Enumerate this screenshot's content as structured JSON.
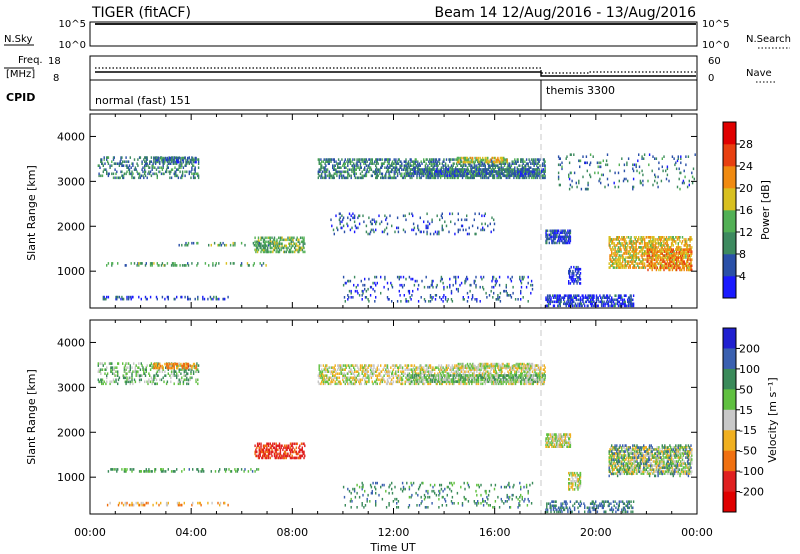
{
  "header": {
    "station": "TIGER (fitACF)",
    "beam_info": "Beam 14 12/Aug/2016 - 13/Aug/2016"
  },
  "top_panels": {
    "nsky_label": "N.Sky",
    "nsky_ticks": [
      "10^5",
      "10^0"
    ],
    "nsearch_label": "N.Search",
    "nsearch_ticks": [
      "10^5",
      "10^0"
    ],
    "freq_label_1": "Freq.",
    "freq_label_2": "[MHz]",
    "freq_ticks": [
      "18",
      "8"
    ],
    "nave_label": "Nave",
    "nave_ticks": [
      "60",
      "0"
    ],
    "cpid_label": "CPID",
    "modes": [
      {
        "name": "normal (fast) 151",
        "start_hour": 0,
        "end_hour": 18
      },
      {
        "name": "themis 3300",
        "start_hour": 18,
        "end_hour": 24
      }
    ]
  },
  "colorbars": {
    "power": {
      "title": "Power [dB]",
      "ticks": [
        "28",
        "24",
        "20",
        "16",
        "12",
        "8",
        "4"
      ],
      "colors": [
        "#1a1aff",
        "#2a50a8",
        "#3d8a5f",
        "#52b055",
        "#d8c020",
        "#f08a10",
        "#e84010",
        "#e00000"
      ]
    },
    "velocity": {
      "title": "Velocity [m s⁻¹]",
      "ticks": [
        "200",
        "100",
        "50",
        "15",
        "-15",
        "-50",
        "-100",
        "-200"
      ],
      "colors": [
        "#2020d0",
        "#3a60b0",
        "#3a8a5a",
        "#60c040",
        "#c8c8c8",
        "#f0b020",
        "#f07010",
        "#e02020",
        "#e00000"
      ]
    }
  },
  "axes": {
    "ylabel": "Slant Range [km]",
    "xlabel": "Time UT",
    "x_ticks": [
      "00:00",
      "04:00",
      "08:00",
      "12:00",
      "16:00",
      "20:00",
      "00:00"
    ],
    "y_ticks": [
      "4000",
      "3000",
      "2000",
      "1000"
    ]
  },
  "chart_data": [
    {
      "type": "heatmap",
      "title": "",
      "xlabel": "Time UT",
      "ylabel": "Slant Range [km]",
      "xlim_hours": [
        0,
        24
      ],
      "ylim_km": [
        180,
        4500
      ],
      "colorbar": "Power [dB]",
      "clim": [
        0,
        32
      ],
      "regions": [
        {
          "t0": 0.3,
          "t1": 4.3,
          "r0": 3050,
          "r1": 3550,
          "val": 9,
          "density": 0.25
        },
        {
          "t0": 2.5,
          "t1": 4.2,
          "r0": 3400,
          "r1": 3550,
          "val": 8,
          "density": 0.6
        },
        {
          "t0": 9.0,
          "t1": 18.0,
          "r0": 3050,
          "r1": 3500,
          "val": 9,
          "density": 0.4
        },
        {
          "t0": 12.5,
          "t1": 18.0,
          "r0": 3100,
          "r1": 3300,
          "val": 8,
          "density": 0.6
        },
        {
          "t0": 14.5,
          "t1": 16.5,
          "r0": 3400,
          "r1": 3520,
          "val": 18,
          "density": 0.5
        },
        {
          "t0": 6.5,
          "t1": 8.5,
          "r0": 1400,
          "r1": 1750,
          "val": 13,
          "density": 0.45
        },
        {
          "t0": 0.5,
          "t1": 7.0,
          "r0": 1100,
          "r1": 1200,
          "val": 12,
          "density": 0.2
        },
        {
          "t0": 3.5,
          "t1": 7.5,
          "r0": 1550,
          "r1": 1650,
          "val": 12,
          "density": 0.15
        },
        {
          "t0": 0.5,
          "t1": 5.5,
          "r0": 350,
          "r1": 450,
          "val": 5,
          "density": 0.2
        },
        {
          "t0": 9.5,
          "t1": 16.0,
          "r0": 1800,
          "r1": 2300,
          "val": 6,
          "density": 0.08
        },
        {
          "t0": 10.0,
          "t1": 17.5,
          "r0": 300,
          "r1": 900,
          "val": 6,
          "density": 0.08
        },
        {
          "t0": 18.0,
          "t1": 19.0,
          "r0": 1600,
          "r1": 1900,
          "val": 5,
          "density": 0.6
        },
        {
          "t0": 18.9,
          "t1": 19.4,
          "r0": 700,
          "r1": 1100,
          "val": 4,
          "density": 0.5
        },
        {
          "t0": 18.0,
          "t1": 21.5,
          "r0": 200,
          "r1": 450,
          "val": 4,
          "density": 0.45
        },
        {
          "t0": 20.5,
          "t1": 23.8,
          "r0": 1050,
          "r1": 1750,
          "val": 19,
          "density": 0.45
        },
        {
          "t0": 22.0,
          "t1": 23.8,
          "r0": 1000,
          "r1": 1500,
          "val": 23,
          "density": 0.4
        },
        {
          "t0": 18.5,
          "t1": 24.0,
          "r0": 2800,
          "r1": 3600,
          "val": 8,
          "density": 0.05
        }
      ]
    },
    {
      "type": "heatmap",
      "title": "",
      "xlabel": "Time UT",
      "ylabel": "Slant Range [km]",
      "xlim_hours": [
        0,
        24
      ],
      "ylim_km": [
        180,
        4500
      ],
      "colorbar": "Velocity [m s⁻¹]",
      "clim": [
        -250,
        250
      ],
      "regions": [
        {
          "t0": 0.3,
          "t1": 4.3,
          "r0": 3050,
          "r1": 3550,
          "val": 40,
          "density": 0.25
        },
        {
          "t0": 2.5,
          "t1": 4.2,
          "r0": 3400,
          "r1": 3550,
          "val": -60,
          "density": 0.5
        },
        {
          "t0": 9.0,
          "t1": 18.0,
          "r0": 3050,
          "r1": 3500,
          "val": 0,
          "density": 0.4
        },
        {
          "t0": 12.5,
          "t1": 18.0,
          "r0": 3100,
          "r1": 3300,
          "val": 30,
          "density": 0.6
        },
        {
          "t0": 14.5,
          "t1": 17.5,
          "r0": 3400,
          "r1": 3520,
          "val": 5,
          "density": 0.5
        },
        {
          "t0": 6.5,
          "t1": 8.5,
          "r0": 1400,
          "r1": 1750,
          "val": -120,
          "density": 0.45
        },
        {
          "t0": 0.5,
          "t1": 7.0,
          "r0": 1100,
          "r1": 1200,
          "val": 60,
          "density": 0.2
        },
        {
          "t0": 0.5,
          "t1": 5.5,
          "r0": 350,
          "r1": 450,
          "val": -40,
          "density": 0.2
        },
        {
          "t0": 10.0,
          "t1": 17.5,
          "r0": 300,
          "r1": 900,
          "val": 80,
          "density": 0.08
        },
        {
          "t0": 18.0,
          "t1": 19.0,
          "r0": 1650,
          "r1": 1950,
          "val": 0,
          "density": 0.65
        },
        {
          "t0": 18.9,
          "t1": 19.4,
          "r0": 700,
          "r1": 1100,
          "val": 0,
          "density": 0.5
        },
        {
          "t0": 20.5,
          "t1": 23.8,
          "r0": 1050,
          "r1": 1700,
          "val": 0,
          "density": 0.55
        },
        {
          "t0": 20.5,
          "t1": 23.8,
          "r0": 1000,
          "r1": 1700,
          "val": 90,
          "density": 0.12
        },
        {
          "t0": 18.0,
          "t1": 21.5,
          "r0": 200,
          "r1": 450,
          "val": 100,
          "density": 0.3
        }
      ]
    }
  ]
}
